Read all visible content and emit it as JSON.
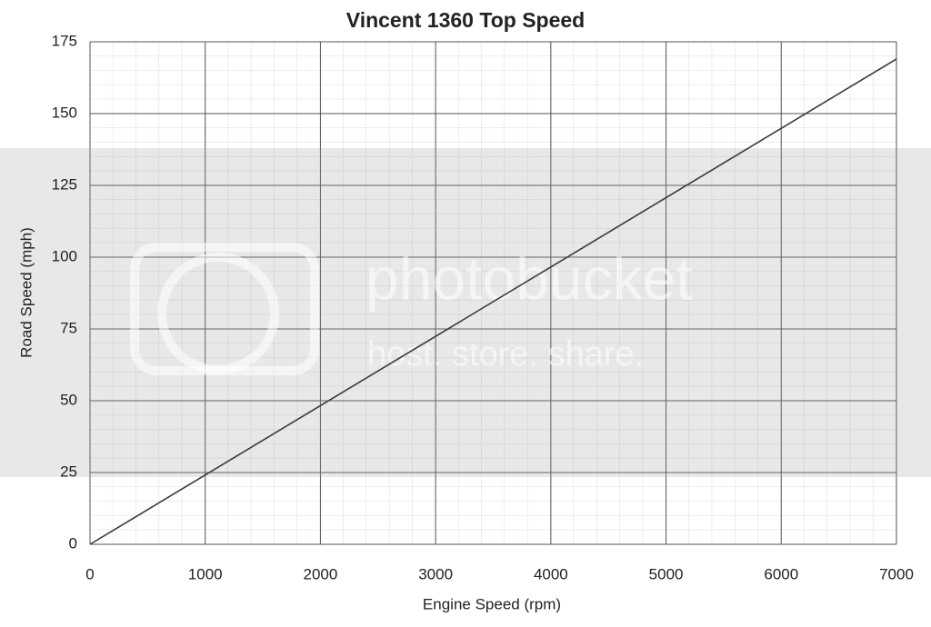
{
  "chart_data": {
    "type": "line",
    "title": "Vincent 1360 Top Speed",
    "x_label": "Engine Speed (rpm)",
    "y_label": "Road Speed (mph)",
    "x": [
      0,
      7000
    ],
    "series": [
      {
        "name": "Road Speed",
        "color": "#3a3a3a",
        "values": [
          0,
          169
        ]
      }
    ],
    "xlim": [
      0,
      7000
    ],
    "xticks": [
      0,
      1000,
      2000,
      3000,
      4000,
      5000,
      6000,
      7000
    ],
    "ylim": [
      0,
      175
    ],
    "yticks": [
      0,
      25,
      50,
      75,
      100,
      125,
      150,
      175
    ],
    "grid": true,
    "watermark": [
      "photobucket",
      "host. store. share."
    ]
  }
}
